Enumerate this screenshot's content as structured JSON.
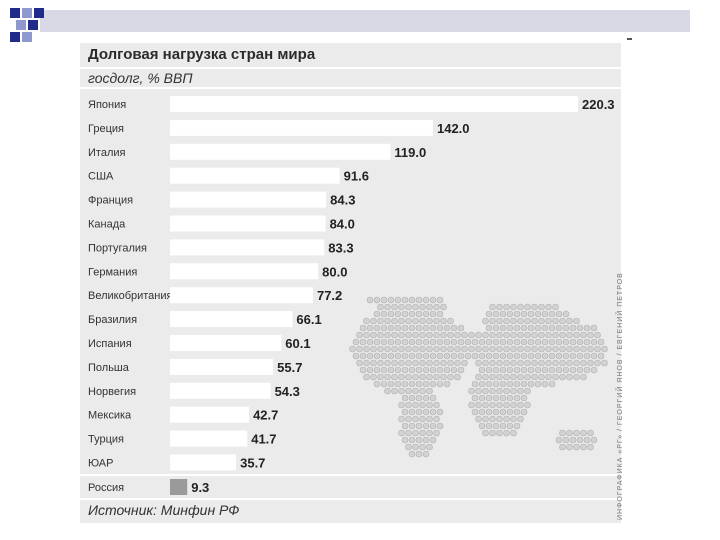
{
  "slide": {
    "accent_dark": "#1f2a8a",
    "accent_light": "#8f97cf",
    "band_color": "#d9d9e6"
  },
  "chart_data": {
    "type": "bar",
    "orientation": "horizontal",
    "title": "Долговая нагрузка стран мира",
    "subtitle": "госдолг, % ВВП",
    "source": "Источник: Минфин РФ",
    "categories": [
      "Япония",
      "Греция",
      "Италия",
      "США",
      "Франция",
      "Канада",
      "Португалия",
      "Германия",
      "Великобритания",
      "Бразилия",
      "Испания",
      "Польша",
      "Норвегия",
      "Мексика",
      "Турция",
      "ЮАР",
      "Россия"
    ],
    "values": [
      220.3,
      142.0,
      119.0,
      91.6,
      84.3,
      84.0,
      83.3,
      80.0,
      77.2,
      66.1,
      60.1,
      55.7,
      54.3,
      42.7,
      41.7,
      35.7,
      9.3
    ],
    "value_labels": [
      "220.3",
      "142.0",
      "119.0",
      "91.6",
      "84.3",
      "84.0",
      "83.3",
      "80.0",
      "77.2",
      "66.1",
      "60.1",
      "55.7",
      "54.3",
      "42.7",
      "41.7",
      "35.7",
      "9.3"
    ],
    "highlight_category": "Россия",
    "bar_color": "#ffffff",
    "highlight_color": "#9a9a9a",
    "xlim": [
      0,
      220.3
    ],
    "grid": false,
    "legend": "none"
  },
  "background_map": "world-map-dots",
  "side_credit": "ИНФОГРАФИКА «РГ» / ГЕОРГИЙ ЯНОВ / ЕВГЕНИЙ ПЕТРОВ"
}
